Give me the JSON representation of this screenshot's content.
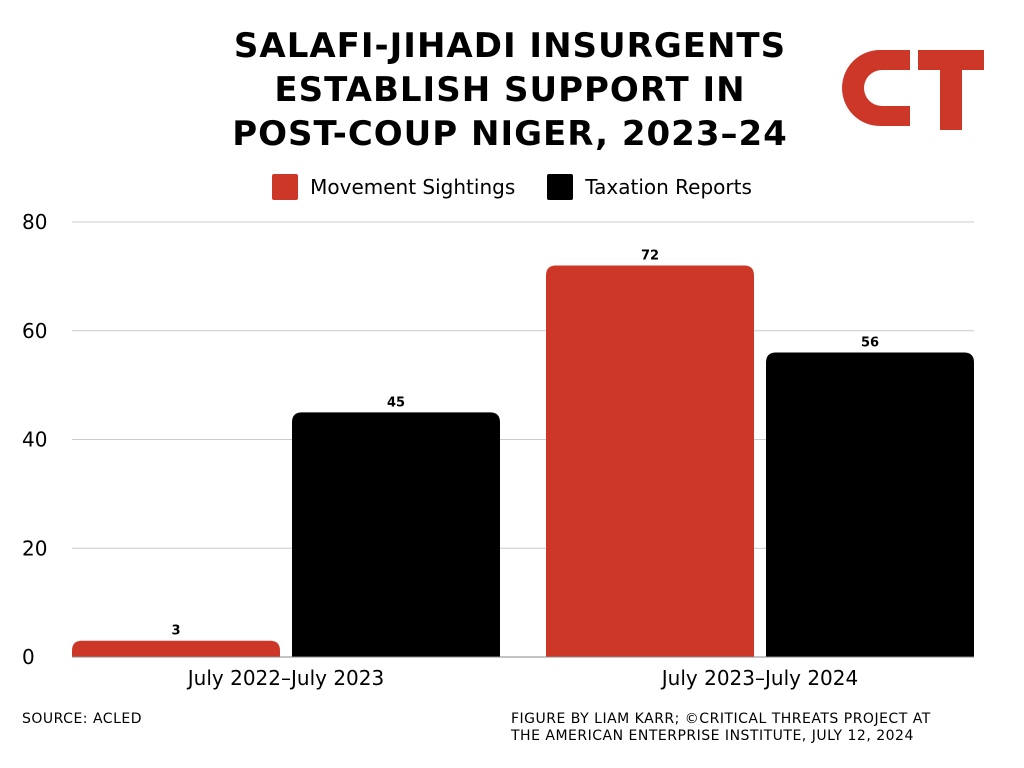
{
  "title_lines": [
    "SALAFI-JIHADI INSURGENTS",
    "ESTABLISH SUPPORT IN",
    "POST-COUP NIGER, 2023–24"
  ],
  "logo": {
    "text": "CT",
    "color": "#cc3727"
  },
  "colors": {
    "movement": "#cc3727",
    "taxation": "#000000",
    "grid": "#cccccc"
  },
  "chart_data": {
    "type": "bar",
    "title": "SALAFI-JIHADI INSURGENTS ESTABLISH SUPPORT IN POST-COUP NIGER, 2023–24",
    "categories": [
      "July 2022–July 2023",
      "July 2023–July 2024"
    ],
    "series": [
      {
        "name": "Movement Sightings",
        "values": [
          3,
          72
        ],
        "color": "#cc3727"
      },
      {
        "name": "Taxation Reports",
        "values": [
          45,
          56
        ],
        "color": "#000000"
      }
    ],
    "ylim": [
      0,
      80
    ],
    "yticks": [
      0,
      20,
      40,
      60,
      80
    ],
    "grid": true,
    "legend": "top-center",
    "data_labels": true
  },
  "footer": {
    "source": "SOURCE: ACLED",
    "credit_lines": [
      "FIGURE BY LIAM KARR; ©CRITICAL THREATS PROJECT AT",
      "THE AMERICAN ENTERPRISE INSTITUTE, JULY 12, 2024"
    ]
  }
}
